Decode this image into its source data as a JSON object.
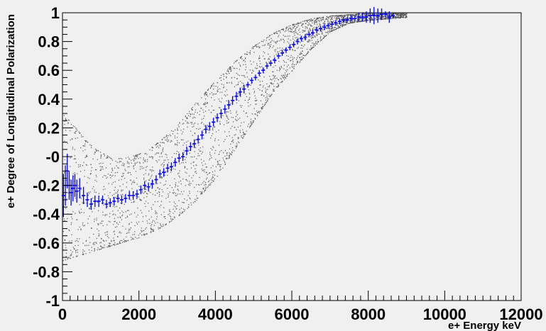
{
  "chart_data": {
    "type": "scatter",
    "title": "",
    "xlabel": "e+ Energy keV",
    "ylabel": "e+ Degree of Longitudinal Polarization",
    "xlim": [
      0,
      12000
    ],
    "ylim": [
      -1,
      1
    ],
    "x_ticks": [
      "0",
      "2000",
      "4000",
      "6000",
      "8000",
      "10000",
      "12000"
    ],
    "y_ticks": [
      "1",
      "0.8",
      "0.6",
      "0.4",
      "0.2",
      "-0",
      "-0.2",
      "-0.4",
      "-0.6",
      "-0.8",
      "-1"
    ],
    "grid": false,
    "background_color": "#f0f0f0",
    "scatter_color": "#555555",
    "profile_color": "#0000ff",
    "scatter_band": {
      "x": [
        0,
        250,
        500,
        750,
        1000,
        1250,
        1500,
        1750,
        2000,
        2500,
        3000,
        3500,
        4000,
        4500,
        5000,
        5500,
        6000,
        6500,
        7000,
        7500,
        8000,
        8500,
        9000
      ],
      "upper": [
        0.3,
        0.23,
        0.15,
        0.08,
        0.03,
        0.0,
        -0.01,
        0.0,
        0.02,
        0.1,
        0.22,
        0.38,
        0.53,
        0.66,
        0.77,
        0.86,
        0.92,
        0.96,
        0.98,
        0.99,
        1.0,
        1.0,
        1.0
      ],
      "lower": [
        -0.72,
        -0.7,
        -0.68,
        -0.66,
        -0.64,
        -0.62,
        -0.6,
        -0.58,
        -0.56,
        -0.5,
        -0.42,
        -0.3,
        -0.15,
        0.05,
        0.25,
        0.45,
        0.6,
        0.75,
        0.87,
        0.93,
        0.95,
        0.96,
        0.97
      ]
    },
    "series": [
      {
        "x": [
          25,
          75,
          125,
          175,
          225,
          275,
          325,
          375,
          450,
          550,
          650,
          750,
          850,
          950,
          1050,
          1150,
          1250,
          1350,
          1450,
          1550,
          1650,
          1750,
          1850,
          1950,
          2050,
          2150,
          2250,
          2350,
          2450,
          2550,
          2650,
          2750,
          2850,
          2950,
          3050,
          3150,
          3250,
          3350,
          3450,
          3550,
          3650,
          3750,
          3850,
          3950,
          4050,
          4150,
          4250,
          4350,
          4450,
          4550,
          4650,
          4750,
          4850,
          4950,
          5050,
          5150,
          5250,
          5350,
          5450,
          5550,
          5650,
          5750,
          5850,
          5950,
          6050,
          6150,
          6250,
          6350,
          6450,
          6550,
          6650,
          6750,
          6850,
          6950,
          7050,
          7150,
          7250,
          7350,
          7450,
          7550,
          7650,
          7750,
          7850,
          7950,
          8050,
          8150,
          8250,
          8350,
          8450,
          8550,
          8650
        ],
        "y": [
          -0.27,
          -0.2,
          -0.1,
          -0.2,
          -0.25,
          -0.22,
          -0.2,
          -0.24,
          -0.22,
          -0.27,
          -0.3,
          -0.33,
          -0.31,
          -0.31,
          -0.3,
          -0.33,
          -0.32,
          -0.31,
          -0.29,
          -0.3,
          -0.29,
          -0.27,
          -0.27,
          -0.26,
          -0.23,
          -0.2,
          -0.21,
          -0.19,
          -0.16,
          -0.12,
          -0.11,
          -0.08,
          -0.07,
          -0.04,
          -0.01,
          0.0,
          0.04,
          0.07,
          0.09,
          0.12,
          0.15,
          0.19,
          0.21,
          0.24,
          0.27,
          0.3,
          0.33,
          0.36,
          0.39,
          0.42,
          0.45,
          0.47,
          0.5,
          0.53,
          0.55,
          0.58,
          0.6,
          0.63,
          0.65,
          0.67,
          0.7,
          0.72,
          0.74,
          0.76,
          0.78,
          0.8,
          0.82,
          0.83,
          0.85,
          0.86,
          0.88,
          0.89,
          0.9,
          0.91,
          0.92,
          0.93,
          0.94,
          0.95,
          0.95,
          0.96,
          0.96,
          0.97,
          0.97,
          0.97,
          0.98,
          0.98,
          0.98,
          0.99,
          0.99,
          0.97,
          0.98
        ],
        "err": [
          0.15,
          0.14,
          0.12,
          0.1,
          0.09,
          0.09,
          0.08,
          0.08,
          0.07,
          0.06,
          0.05,
          0.04,
          0.04,
          0.04,
          0.03,
          0.03,
          0.03,
          0.03,
          0.03,
          0.03,
          0.03,
          0.03,
          0.03,
          0.03,
          0.03,
          0.03,
          0.03,
          0.03,
          0.03,
          0.03,
          0.03,
          0.03,
          0.03,
          0.03,
          0.03,
          0.03,
          0.03,
          0.03,
          0.03,
          0.03,
          0.03,
          0.03,
          0.03,
          0.03,
          0.03,
          0.03,
          0.03,
          0.03,
          0.03,
          0.03,
          0.03,
          0.03,
          0.02,
          0.02,
          0.02,
          0.02,
          0.02,
          0.02,
          0.02,
          0.02,
          0.02,
          0.02,
          0.02,
          0.02,
          0.02,
          0.02,
          0.02,
          0.02,
          0.02,
          0.02,
          0.02,
          0.02,
          0.02,
          0.02,
          0.02,
          0.02,
          0.02,
          0.02,
          0.02,
          0.02,
          0.02,
          0.03,
          0.03,
          0.04,
          0.05,
          0.06,
          0.05,
          0.04,
          0.02,
          0.04,
          0.02
        ]
      }
    ]
  }
}
